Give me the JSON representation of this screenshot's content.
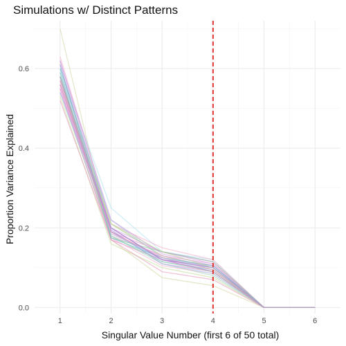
{
  "chart_data": {
    "type": "line",
    "title": "Simulations w/ Distinct Patterns",
    "xlabel": "Singular Value Number (first 6 of 50 total)",
    "ylabel": "Proportion Variance Explained",
    "x": [
      1,
      2,
      3,
      4,
      5,
      6
    ],
    "x_ticks": [
      "1",
      "2",
      "3",
      "4",
      "5",
      "6"
    ],
    "xlim": [
      0.5,
      6.5
    ],
    "ylim": [
      -0.015,
      0.72
    ],
    "y_ticks": [
      "0.0",
      "0.2",
      "0.4",
      "0.6"
    ],
    "y_tick_values": [
      0.0,
      0.2,
      0.4,
      0.6
    ],
    "grid": true,
    "legend": "none",
    "reference_line": {
      "x": 4,
      "color": "#e0312f",
      "style": "dashed"
    },
    "n_series_shown": 30,
    "representative_series": [
      [
        0.7,
        0.17,
        0.075,
        0.055,
        0.0,
        0.0
      ],
      [
        0.6,
        0.25,
        0.14,
        0.12,
        0.0,
        0.0
      ],
      [
        0.63,
        0.21,
        0.15,
        0.12,
        0.0,
        0.0
      ],
      [
        0.62,
        0.2,
        0.14,
        0.11,
        0.0,
        0.0
      ],
      [
        0.61,
        0.19,
        0.14,
        0.115,
        0.0,
        0.0
      ],
      [
        0.6,
        0.21,
        0.13,
        0.1,
        0.0,
        0.0
      ],
      [
        0.59,
        0.22,
        0.125,
        0.09,
        0.0,
        0.0
      ],
      [
        0.58,
        0.18,
        0.13,
        0.11,
        0.0,
        0.0
      ],
      [
        0.57,
        0.2,
        0.12,
        0.1,
        0.0,
        0.0
      ],
      [
        0.56,
        0.19,
        0.115,
        0.095,
        0.0,
        0.0
      ],
      [
        0.55,
        0.17,
        0.12,
        0.09,
        0.0,
        0.0
      ],
      [
        0.54,
        0.18,
        0.11,
        0.08,
        0.0,
        0.0
      ],
      [
        0.53,
        0.16,
        0.1,
        0.075,
        0.0,
        0.0
      ],
      [
        0.52,
        0.17,
        0.09,
        0.07,
        0.0,
        0.0
      ],
      [
        0.58,
        0.19,
        0.12,
        0.105,
        0.0,
        0.0
      ],
      [
        0.57,
        0.21,
        0.13,
        0.095,
        0.0,
        0.0
      ],
      [
        0.59,
        0.185,
        0.125,
        0.1,
        0.0,
        0.0
      ],
      [
        0.56,
        0.175,
        0.105,
        0.085,
        0.0,
        0.0
      ],
      [
        0.62,
        0.22,
        0.135,
        0.105,
        0.0,
        0.0
      ],
      [
        0.55,
        0.195,
        0.11,
        0.09,
        0.0,
        0.0
      ],
      [
        0.58,
        0.175,
        0.14,
        0.115,
        0.0,
        0.0
      ],
      [
        0.6,
        0.195,
        0.11,
        0.085,
        0.0,
        0.0
      ],
      [
        0.57,
        0.185,
        0.13,
        0.1,
        0.0,
        0.0
      ],
      [
        0.54,
        0.2,
        0.12,
        0.1,
        0.0,
        0.0
      ],
      [
        0.61,
        0.175,
        0.125,
        0.105,
        0.0,
        0.0
      ],
      [
        0.56,
        0.2,
        0.12,
        0.09,
        0.0,
        0.0
      ],
      [
        0.59,
        0.18,
        0.115,
        0.09,
        0.0,
        0.0
      ],
      [
        0.58,
        0.21,
        0.14,
        0.1,
        0.0,
        0.0
      ],
      [
        0.57,
        0.19,
        0.125,
        0.095,
        0.0,
        0.0
      ],
      [
        0.58,
        0.2,
        0.12,
        0.1,
        0.0,
        0.0
      ]
    ],
    "series_colors": [
      "#d4d4a0",
      "#a8e0ef",
      "#f0a8c8",
      "#c896e0",
      "#e67fcf",
      "#7fc8a0",
      "#9ec4f0",
      "#e8a0d0",
      "#b2a0e6",
      "#70b8c8",
      "#d87cc0",
      "#90d0b0",
      "#c0d890",
      "#e890b8",
      "#a090d8"
    ]
  }
}
